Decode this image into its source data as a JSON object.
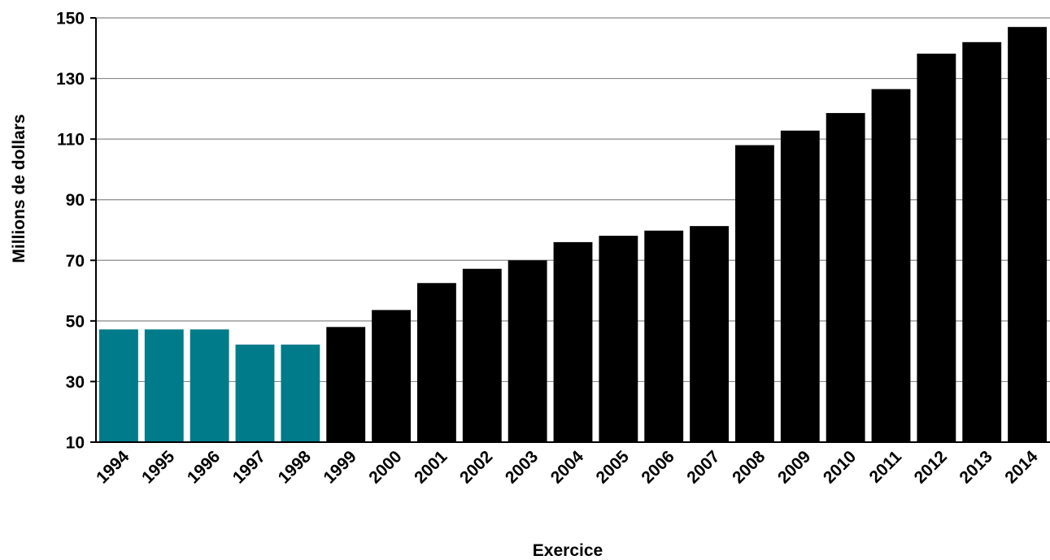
{
  "chart_data": {
    "type": "bar",
    "title": "",
    "xlabel": "Exercice",
    "ylabel": "Millions de dollars",
    "ylim": [
      10,
      150
    ],
    "yticks": [
      10,
      30,
      50,
      70,
      90,
      110,
      130,
      150
    ],
    "grid": true,
    "legend": "none",
    "categories": [
      "1994",
      "1995",
      "1996",
      "1997",
      "1998",
      "1999",
      "2000",
      "2001",
      "2002",
      "2003",
      "2004",
      "2005",
      "2006",
      "2007",
      "2008",
      "2009",
      "2010",
      "2011",
      "2012",
      "2013",
      "2014"
    ],
    "values": [
      47.2,
      47.2,
      47.2,
      42.2,
      42.2,
      48,
      53.6,
      62.5,
      67.2,
      70,
      76,
      78.1,
      79.8,
      81.3,
      108,
      112.8,
      118.6,
      126.5,
      138.2,
      142,
      147
    ],
    "colors": {
      "highlight": "#007b8a",
      "default": "#000000"
    },
    "highlight_categories": [
      "1994",
      "1995",
      "1996",
      "1997",
      "1998"
    ]
  }
}
